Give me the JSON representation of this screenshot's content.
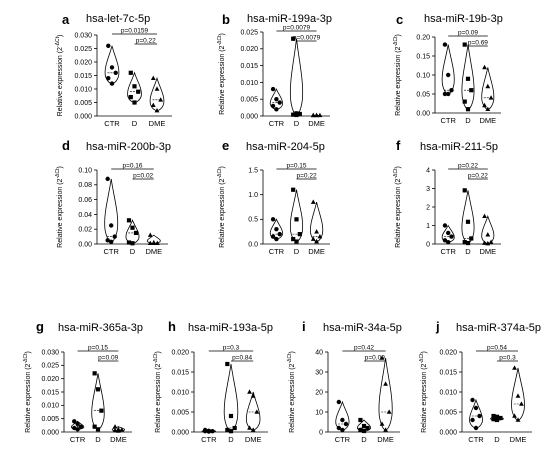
{
  "ylabel": "Relative expression (2",
  "ylabel_sup": "-ΔCt",
  "ylabel_close": ")",
  "chart_data": [
    {
      "type": "violin",
      "letter": "a",
      "title": "hsa-let-7c-5p",
      "categories": [
        "CTR",
        "D",
        "DME"
      ],
      "ylim": [
        0,
        0.03
      ],
      "yticks": [
        "0.000",
        "0.005",
        "0.010",
        "0.015",
        "0.020",
        "0.025",
        "0.030"
      ],
      "series": [
        {
          "name": "CTR",
          "values": [
            0.026,
            0.018,
            0.016,
            0.014,
            0.012
          ]
        },
        {
          "name": "D",
          "values": [
            0.016,
            0.011,
            0.009,
            0.007,
            0.005
          ]
        },
        {
          "name": "DME",
          "values": [
            0.014,
            0.01,
            0.006,
            0.004,
            0.002
          ]
        }
      ],
      "comparisons": [
        {
          "from": 0,
          "to": 2,
          "label": "p=0.0159"
        },
        {
          "from": 1,
          "to": 2,
          "label": "p=0.22"
        }
      ]
    },
    {
      "type": "violin",
      "letter": "b",
      "title": "hsa-miR-199a-3p",
      "categories": [
        "CTR",
        "D",
        "DME"
      ],
      "ylim": [
        0,
        0.025
      ],
      "yticks": [
        "0.000",
        "0.005",
        "0.010",
        "0.015",
        "0.020",
        "0.025"
      ],
      "series": [
        {
          "name": "CTR",
          "values": [
            0.008,
            0.005,
            0.004,
            0.003,
            0.002
          ]
        },
        {
          "name": "D",
          "values": [
            0.023,
            0.0008,
            0.0006,
            0.0004,
            0.0003
          ]
        },
        {
          "name": "DME",
          "values": [
            0.0002,
            0.0002,
            0.0002,
            0.0002,
            0.0002
          ]
        }
      ],
      "comparisons": [
        {
          "from": 0,
          "to": 2,
          "label": "p=0.0079"
        },
        {
          "from": 1,
          "to": 2,
          "label": "p=0.0079"
        }
      ]
    },
    {
      "type": "violin",
      "letter": "c",
      "title": "hsa-miR-19b-3p",
      "categories": [
        "CTR",
        "D",
        "DME"
      ],
      "ylim": [
        0,
        0.2
      ],
      "yticks": [
        "0.00",
        "0.05",
        "0.10",
        "0.15",
        "0.20"
      ],
      "series": [
        {
          "name": "CTR",
          "values": [
            0.18,
            0.1,
            0.06,
            0.05,
            0.05
          ]
        },
        {
          "name": "D",
          "values": [
            0.18,
            0.09,
            0.06,
            0.03,
            0.01
          ]
        },
        {
          "name": "DME",
          "values": [
            0.12,
            0.07,
            0.04,
            0.02,
            0.01
          ]
        }
      ],
      "comparisons": [
        {
          "from": 0,
          "to": 2,
          "label": "p=0.09"
        },
        {
          "from": 1,
          "to": 2,
          "label": "p=0.69"
        }
      ]
    },
    {
      "type": "violin",
      "letter": "d",
      "title": "hsa-miR-200b-3p",
      "categories": [
        "CTR",
        "D",
        "DME"
      ],
      "ylim": [
        0,
        0.1
      ],
      "yticks": [
        "0.00",
        "0.02",
        "0.04",
        "0.06",
        "0.08",
        "0.10"
      ],
      "series": [
        {
          "name": "CTR",
          "values": [
            0.088,
            0.025,
            0.01,
            0.005,
            0.003
          ]
        },
        {
          "name": "D",
          "values": [
            0.032,
            0.022,
            0.015,
            0.002,
            0.001
          ]
        },
        {
          "name": "DME",
          "values": [
            0.012,
            0.002,
            0.001,
            0.001,
            0.001
          ]
        }
      ],
      "comparisons": [
        {
          "from": 0,
          "to": 2,
          "label": "p=0.16"
        },
        {
          "from": 1,
          "to": 2,
          "label": "p=0.02"
        }
      ]
    },
    {
      "type": "violin",
      "letter": "e",
      "title": "hsa-miR-204-5p",
      "categories": [
        "CTR",
        "D",
        "DME"
      ],
      "ylim": [
        0,
        1.5
      ],
      "yticks": [
        "0.0",
        "0.5",
        "1.0",
        "1.5"
      ],
      "series": [
        {
          "name": "CTR",
          "values": [
            0.5,
            0.3,
            0.2,
            0.15,
            0.1
          ]
        },
        {
          "name": "D",
          "values": [
            1.1,
            0.5,
            0.2,
            0.1,
            0.05
          ]
        },
        {
          "name": "DME",
          "values": [
            0.85,
            0.25,
            0.15,
            0.1,
            0.05
          ]
        }
      ],
      "comparisons": [
        {
          "from": 0,
          "to": 2,
          "label": "p=0.15"
        },
        {
          "from": 1,
          "to": 2,
          "label": "p=0.22"
        }
      ]
    },
    {
      "type": "violin",
      "letter": "f",
      "title": "hsa-miR-211-5p",
      "categories": [
        "CTR",
        "D",
        "DME"
      ],
      "ylim": [
        0,
        4
      ],
      "yticks": [
        "0",
        "1",
        "2",
        "3",
        "4"
      ],
      "series": [
        {
          "name": "CTR",
          "values": [
            1.0,
            0.6,
            0.4,
            0.2,
            0.1
          ]
        },
        {
          "name": "D",
          "values": [
            2.9,
            1.2,
            0.3,
            0.1,
            0.05
          ]
        },
        {
          "name": "DME",
          "values": [
            1.5,
            0.5,
            0.1,
            0.05,
            0.02
          ]
        }
      ],
      "comparisons": [
        {
          "from": 0,
          "to": 2,
          "label": "p=0.22"
        },
        {
          "from": 1,
          "to": 2,
          "label": "p=0.22"
        }
      ]
    },
    {
      "type": "violin",
      "letter": "g",
      "title": "hsa-miR-365a-3p",
      "categories": [
        "CTR",
        "D",
        "DME"
      ],
      "ylim": [
        0,
        0.03
      ],
      "yticks": [
        "0.000",
        "0.005",
        "0.010",
        "0.015",
        "0.020",
        "0.025",
        "0.030"
      ],
      "series": [
        {
          "name": "CTR",
          "values": [
            0.004,
            0.003,
            0.002,
            0.0015,
            0.001
          ]
        },
        {
          "name": "D",
          "values": [
            0.022,
            0.016,
            0.008,
            0.002,
            0.001
          ]
        },
        {
          "name": "DME",
          "values": [
            0.002,
            0.001,
            0.0008,
            0.0006,
            0.0004
          ]
        }
      ],
      "comparisons": [
        {
          "from": 0,
          "to": 2,
          "label": "p=0.15"
        },
        {
          "from": 1,
          "to": 2,
          "label": "p=0.09"
        }
      ]
    },
    {
      "type": "violin",
      "letter": "h",
      "title": "hsa-miR-193a-5p",
      "categories": [
        "CTR",
        "D",
        "DME"
      ],
      "ylim": [
        0,
        0.02
      ],
      "yticks": [
        "0.000",
        "0.005",
        "0.010",
        "0.015",
        "0.020"
      ],
      "series": [
        {
          "name": "CTR",
          "values": [
            0.0005,
            0.0003,
            0.0002,
            0.0002,
            0.0001
          ]
        },
        {
          "name": "D",
          "values": [
            0.017,
            0.004,
            0.001,
            0.0005,
            0.0002
          ]
        },
        {
          "name": "DME",
          "values": [
            0.01,
            0.009,
            0.005,
            0.001,
            0.0005
          ]
        }
      ],
      "comparisons": [
        {
          "from": 0,
          "to": 2,
          "label": "p=0.3"
        },
        {
          "from": 1,
          "to": 2,
          "label": "p=0.84"
        }
      ]
    },
    {
      "type": "violin",
      "letter": "i",
      "title": "hsa-miR-34a-5p",
      "categories": [
        "CTR",
        "D",
        "DME"
      ],
      "ylim": [
        0,
        40
      ],
      "yticks": [
        "0",
        "10",
        "20",
        "30",
        "40"
      ],
      "series": [
        {
          "name": "CTR",
          "values": [
            15,
            6,
            4,
            2,
            1
          ]
        },
        {
          "name": "D",
          "values": [
            6,
            3,
            2,
            1,
            0.5
          ]
        },
        {
          "name": "DME",
          "values": [
            37,
            24,
            10,
            4,
            1
          ]
        }
      ],
      "comparisons": [
        {
          "from": 0,
          "to": 2,
          "label": "p=0.42"
        },
        {
          "from": 1,
          "to": 2,
          "label": "p=0.09"
        }
      ]
    },
    {
      "type": "violin",
      "letter": "j",
      "title": "hsa-miR-374a-5p",
      "categories": [
        "CTR",
        "D",
        "DME"
      ],
      "ylim": [
        0,
        0.02
      ],
      "yticks": [
        "0.000",
        "0.005",
        "0.010",
        "0.015",
        "0.020"
      ],
      "series": [
        {
          "name": "CTR",
          "values": [
            0.008,
            0.006,
            0.004,
            0.003,
            0.001
          ]
        },
        {
          "name": "D",
          "values": [
            0.004,
            0.0038,
            0.0035,
            0.0032,
            0.003
          ]
        },
        {
          "name": "DME",
          "values": [
            0.016,
            0.009,
            0.007,
            0.004,
            0.003
          ]
        }
      ],
      "comparisons": [
        {
          "from": 0,
          "to": 2,
          "label": "p=0.54"
        },
        {
          "from": 1,
          "to": 2,
          "label": "p=0.3"
        }
      ]
    }
  ]
}
